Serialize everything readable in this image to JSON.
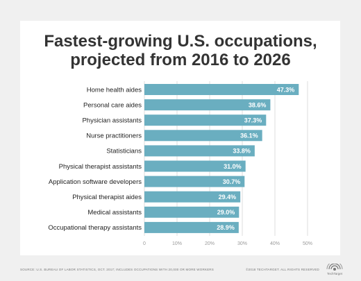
{
  "chart_data": {
    "type": "bar",
    "orientation": "horizontal",
    "title": [
      "Fastest-growing U.S. occupations,",
      "projected from 2016 to 2026"
    ],
    "categories": [
      "Home health aides",
      "Personal care aides",
      "Physician assistants",
      "Nurse practitioners",
      "Statisticians",
      "Physical therapist assistants",
      "Application software developers",
      "Physical therapist aides",
      "Medical assistants",
      "Occupational therapy assistants"
    ],
    "values": [
      47.3,
      38.6,
      37.3,
      36.1,
      33.8,
      31.0,
      30.7,
      29.4,
      29.0,
      28.9
    ],
    "value_labels": [
      "47.3%",
      "38.6%",
      "37.3%",
      "36.1%",
      "33.8%",
      "31.0%",
      "30.7%",
      "29.4%",
      "29.0%",
      "28.9%"
    ],
    "xlim": [
      0,
      50
    ],
    "xticks": [
      0,
      10,
      20,
      30,
      40,
      50
    ],
    "xtick_labels": [
      "0",
      "10%",
      "20%",
      "30%",
      "40%",
      "50%"
    ],
    "grid": true,
    "bar_color": "#6aaec0"
  },
  "footer": {
    "source": "SOURCE: U.S. BUREAU OF LABOR STATISTICS, OCT. 2017; INCLUDES OCCUPATIONS WITH 20,000 OR MORE WORKERS",
    "copyright": "©2018 TECHTARGET. ALL RIGHTS RESERVED",
    "logo_text": "TechTarget"
  },
  "colors": {
    "background": "#f0f0f0",
    "panel": "#ffffff",
    "title": "#333333",
    "grid": "#dddddd"
  }
}
